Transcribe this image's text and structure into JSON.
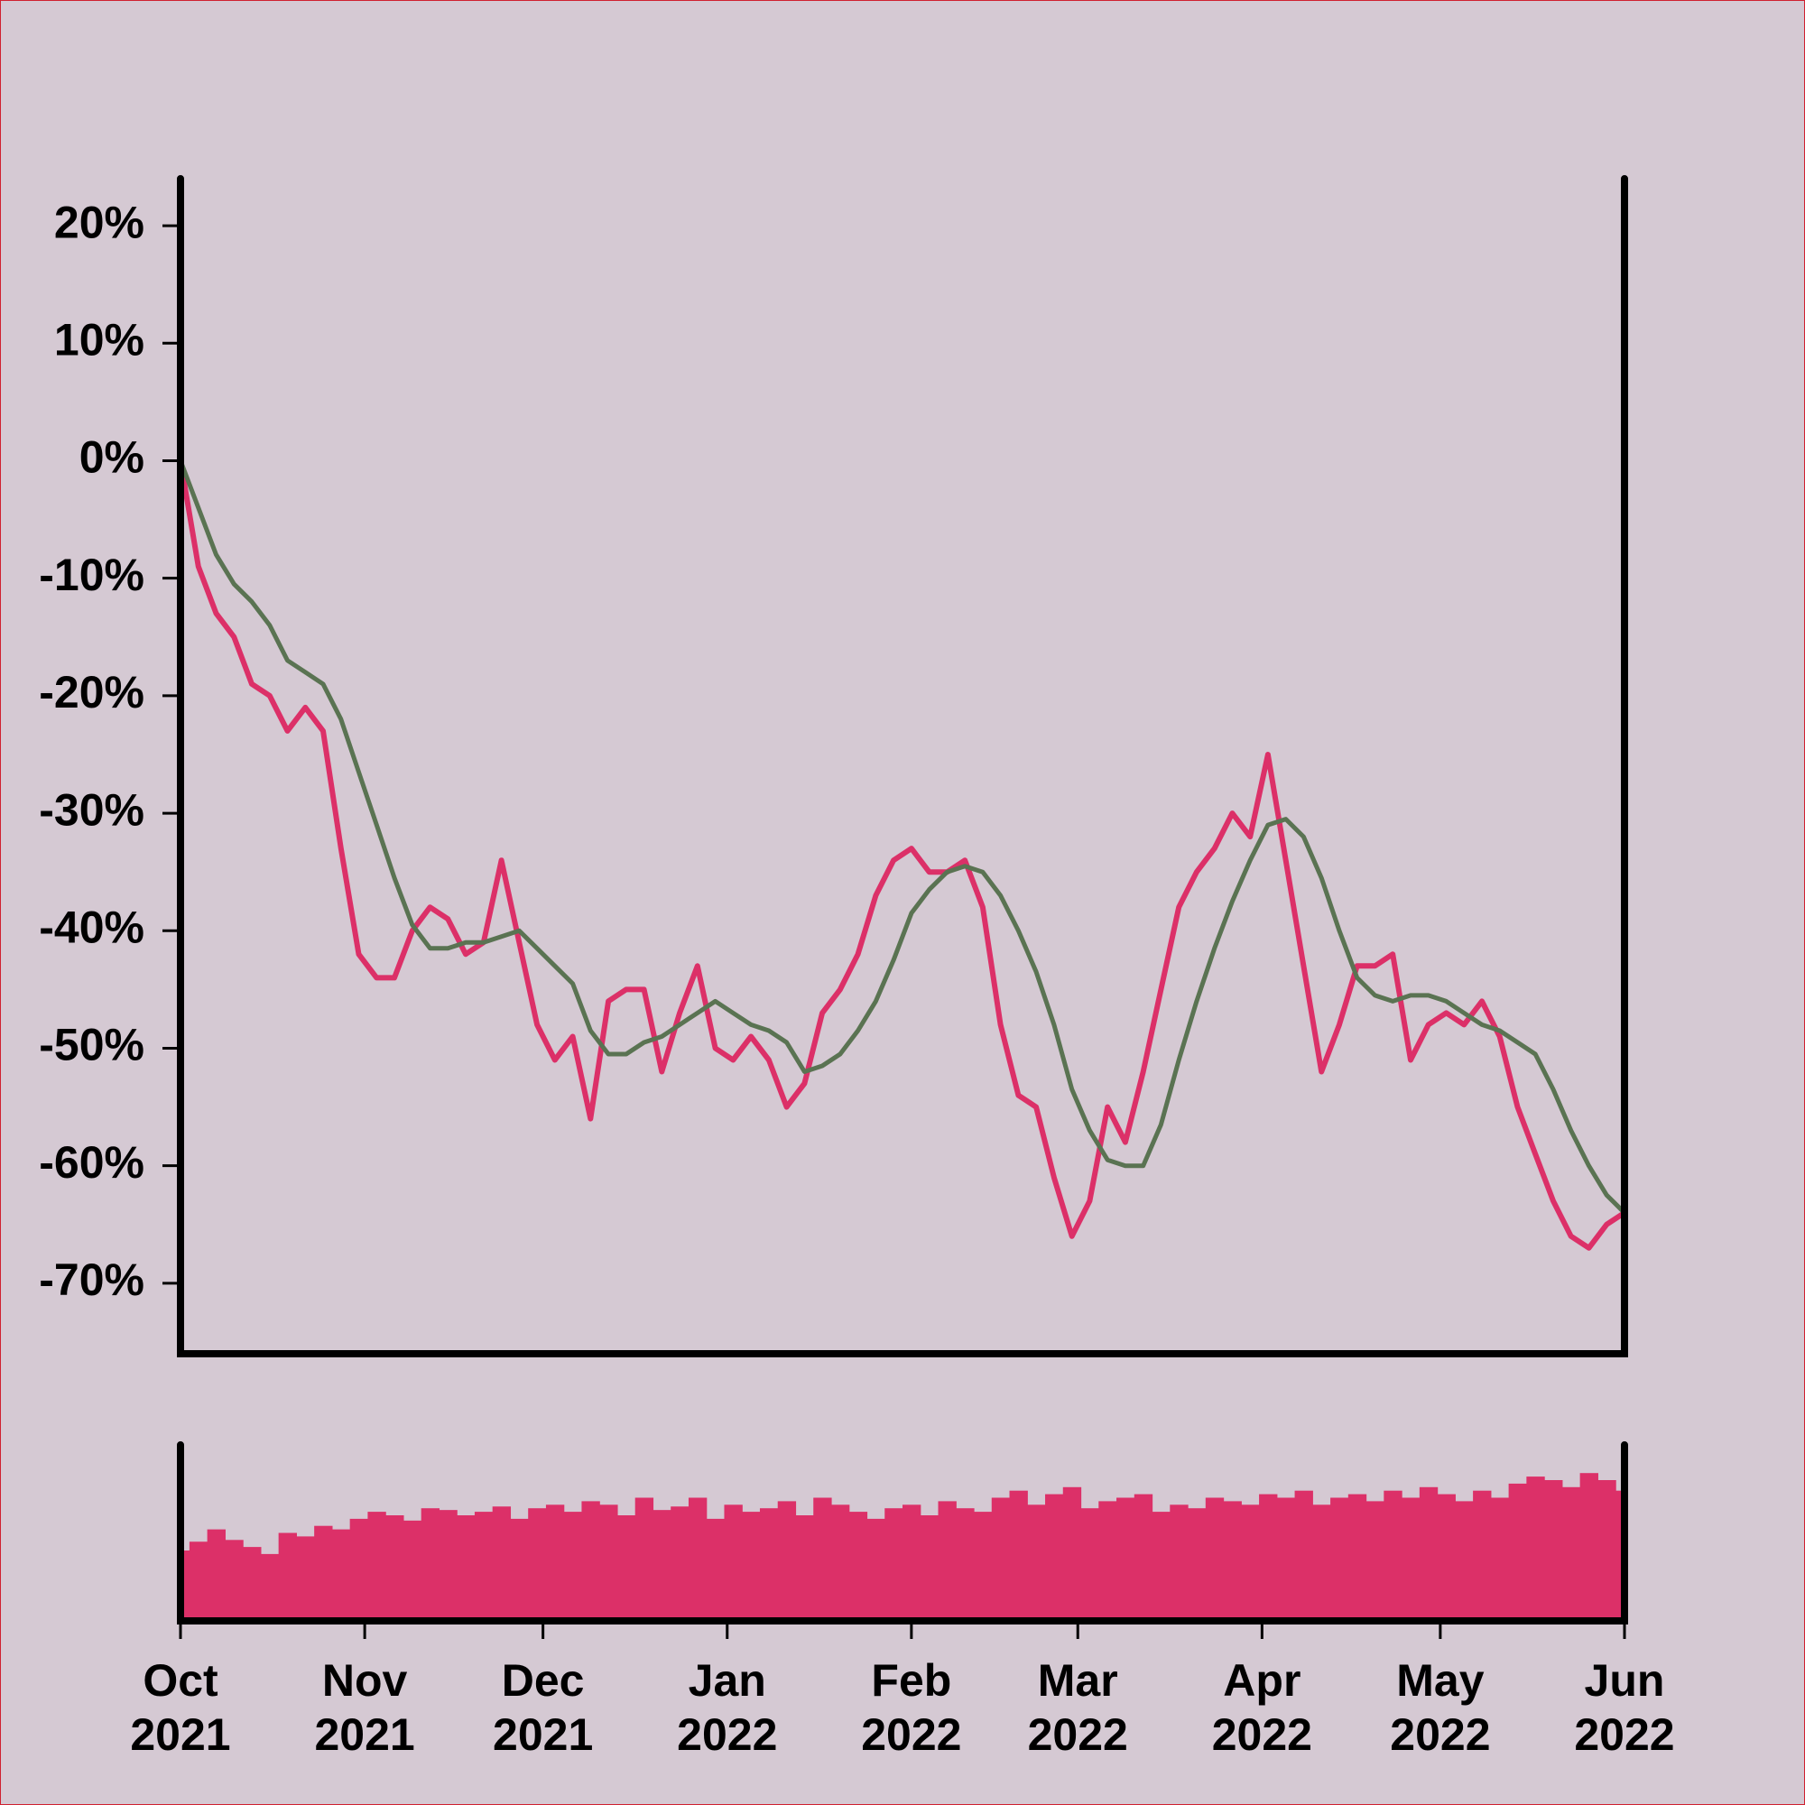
{
  "chart_data": [
    {
      "type": "line",
      "x": [
        0,
        3,
        6,
        9,
        12,
        15,
        18,
        21,
        24,
        27,
        30,
        33,
        36,
        39,
        42,
        45,
        48,
        51,
        54,
        57,
        60,
        63,
        66,
        69,
        72,
        75,
        78,
        81,
        84,
        87,
        90,
        93,
        96,
        99,
        102,
        105,
        108,
        111,
        114,
        117,
        120,
        123,
        126,
        129,
        132,
        135,
        138,
        141,
        144,
        147,
        150,
        153,
        156,
        159,
        162,
        165,
        168,
        171,
        174,
        177,
        180,
        183,
        186,
        189,
        192,
        195,
        198,
        201,
        204,
        207,
        210,
        213,
        216,
        219,
        222,
        225,
        228,
        231,
        234,
        237,
        240,
        243
      ],
      "xlim": [
        0,
        243
      ],
      "ylim": [
        -76,
        24
      ],
      "yticks": [
        {
          "value": 20,
          "label": "20%"
        },
        {
          "value": 10,
          "label": "10%"
        },
        {
          "value": 0,
          "label": "0%"
        },
        {
          "value": -10,
          "label": "-10%"
        },
        {
          "value": -20,
          "label": "-20%"
        },
        {
          "value": -30,
          "label": "-30%"
        },
        {
          "value": -40,
          "label": "-40%"
        },
        {
          "value": -50,
          "label": "-50%"
        },
        {
          "value": -60,
          "label": "-60%"
        },
        {
          "value": -70,
          "label": "-70%"
        }
      ],
      "series": [
        {
          "color": "#dc3068",
          "values": [
            0,
            -9,
            -13,
            -15,
            -19,
            -20,
            -23,
            -21,
            -23,
            -33,
            -42,
            -44,
            -44,
            -40,
            -38,
            -39,
            -42,
            -41,
            -34,
            -41,
            -48,
            -51,
            -49,
            -56,
            -46,
            -45,
            -45,
            -52,
            -47,
            -43,
            -50,
            -51,
            -49,
            -51,
            -55,
            -53,
            -47,
            -45,
            -42,
            -37,
            -34,
            -33,
            -35,
            -35,
            -34,
            -38,
            -48,
            -54,
            -55,
            -61,
            -66,
            -63,
            -55,
            -58,
            -52,
            -45,
            -38,
            -35,
            -33,
            -30,
            -32,
            -25,
            -34,
            -43,
            -52,
            -48,
            -43,
            -43,
            -42,
            -51,
            -48,
            -47,
            -48,
            -46,
            -49,
            -55,
            -59,
            -63,
            -66,
            -67,
            -65,
            -64
          ]
        },
        {
          "color": "#5a7352",
          "values": [
            0,
            -4,
            -8,
            -10.5,
            -12,
            -14,
            -17,
            -18,
            -19,
            -22,
            -26.5,
            -31,
            -35.5,
            -39.5,
            -41.5,
            -41.5,
            -41,
            -41,
            -40.5,
            -40,
            -41.5,
            -43,
            -44.5,
            -48.5,
            -50.5,
            -50.5,
            -49.5,
            -49,
            -48,
            -47,
            -46,
            -47,
            -48,
            -48.5,
            -49.5,
            -52,
            -51.5,
            -50.5,
            -48.5,
            -46,
            -42.5,
            -38.5,
            -36.5,
            -35,
            -34.5,
            -35,
            -37,
            -40,
            -43.5,
            -48,
            -53.5,
            -57,
            -59.5,
            -60,
            -60,
            -56.5,
            -51,
            -46,
            -41.5,
            -37.5,
            -34,
            -31,
            -30.5,
            -32,
            -35.5,
            -40,
            -44,
            -45.5,
            -46,
            -45.5,
            -45.5,
            -46,
            -47,
            -48,
            -48.5,
            -49.5,
            -50.5,
            -53.5,
            -57,
            -60,
            -62.5,
            -64
          ]
        }
      ]
    },
    {
      "type": "bar",
      "x": [
        0,
        3,
        6,
        9,
        12,
        15,
        18,
        21,
        24,
        27,
        30,
        33,
        36,
        39,
        42,
        45,
        48,
        51,
        54,
        57,
        60,
        63,
        66,
        69,
        72,
        75,
        78,
        81,
        84,
        87,
        90,
        93,
        96,
        99,
        102,
        105,
        108,
        111,
        114,
        117,
        120,
        123,
        126,
        129,
        132,
        135,
        138,
        141,
        144,
        147,
        150,
        153,
        156,
        159,
        162,
        165,
        168,
        171,
        174,
        177,
        180,
        183,
        186,
        189,
        192,
        195,
        198,
        201,
        204,
        207,
        210,
        213,
        216,
        219,
        222,
        225,
        228,
        231,
        234,
        237,
        240,
        243
      ],
      "xlim": [
        0,
        243
      ],
      "ylim": [
        0,
        100
      ],
      "color": "#dc3068",
      "values": [
        40,
        45,
        52,
        46,
        42,
        38,
        50,
        48,
        54,
        52,
        58,
        62,
        60,
        57,
        64,
        63,
        60,
        62,
        65,
        58,
        64,
        66,
        62,
        68,
        66,
        60,
        70,
        63,
        65,
        70,
        58,
        66,
        62,
        64,
        68,
        60,
        70,
        66,
        62,
        58,
        64,
        66,
        60,
        68,
        64,
        62,
        70,
        74,
        66,
        72,
        76,
        64,
        68,
        70,
        72,
        62,
        66,
        64,
        70,
        68,
        66,
        72,
        70,
        74,
        66,
        70,
        72,
        68,
        74,
        70,
        76,
        72,
        68,
        74,
        70,
        78,
        82,
        80,
        76,
        84,
        80,
        74
      ],
      "xticks": [
        {
          "value": 0,
          "label": "Oct 2021"
        },
        {
          "value": 31,
          "label": "Nov 2021"
        },
        {
          "value": 61,
          "label": "Dec 2021"
        },
        {
          "value": 92,
          "label": "Jan 2022"
        },
        {
          "value": 123,
          "label": "Feb 2022"
        },
        {
          "value": 151,
          "label": "Mar 2022"
        },
        {
          "value": 182,
          "label": "Apr 2022"
        },
        {
          "value": 212,
          "label": "May 2022"
        },
        {
          "value": 243,
          "label": "Jun 2022"
        }
      ]
    }
  ]
}
